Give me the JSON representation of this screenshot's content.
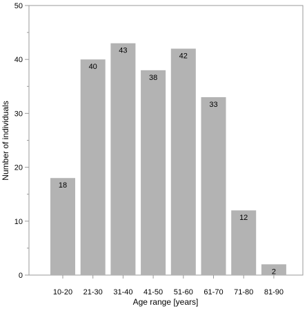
{
  "chart_data": {
    "type": "bar",
    "title": "",
    "xlabel": "Age range [years]",
    "ylabel": "Number of individuals",
    "categories": [
      "10-20",
      "21-30",
      "31-40",
      "41-50",
      "51-60",
      "61-70",
      "71-80",
      "81-90"
    ],
    "values": [
      18,
      40,
      43,
      38,
      42,
      33,
      12,
      2
    ],
    "ylim": [
      0,
      50
    ],
    "yticks": [
      0,
      10,
      20,
      30,
      40,
      50
    ],
    "grid": false,
    "legend": "none",
    "bar_color": "#b3b3b3",
    "frame_color": "#999999"
  }
}
